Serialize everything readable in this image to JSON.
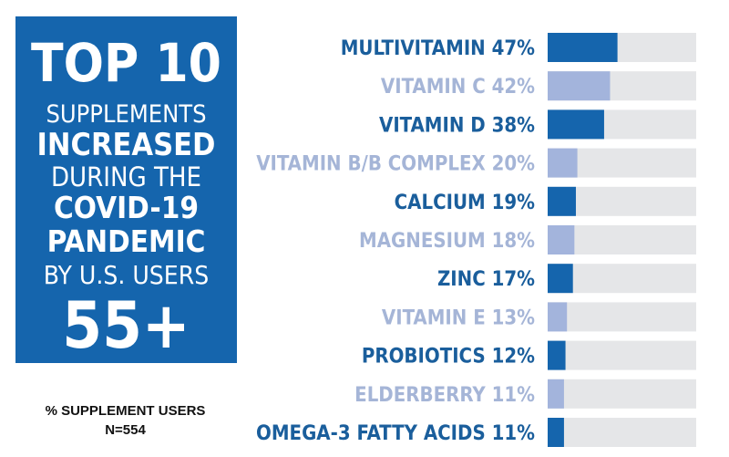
{
  "title": {
    "line_top": "TOP 10",
    "line1": "SUPPLEMENTS",
    "line2": "INCREASED",
    "line3": "DURING THE",
    "line4": "COVID-19",
    "line5": "PANDEMIC",
    "line6": "BY U.S. USERS",
    "age": "55+"
  },
  "footnote": {
    "line1": "% SUPPLEMENT USERS",
    "line2": "N=554"
  },
  "colors": {
    "title_box": "#1565ad",
    "dark_bar": "#1565ad",
    "light_bar": "#a3b4dc",
    "track": "#e5e6e8",
    "dark_label": "#1a5e9c",
    "light_label": "#a5b5d7"
  },
  "chart_data": {
    "type": "bar",
    "orientation": "horizontal",
    "categories": [
      "MULTIVITAMIN",
      "VITAMIN C",
      "VITAMIN D",
      "VITAMIN B/B COMPLEX",
      "CALCIUM",
      "MAGNESIUM",
      "ZINC",
      "VITAMIN E",
      "PROBIOTICS",
      "ELDERBERRY",
      "OMEGA-3 FATTY ACIDS"
    ],
    "values": [
      47,
      42,
      38,
      20,
      19,
      18,
      17,
      13,
      12,
      11,
      11
    ],
    "value_labels": [
      "47%",
      "42%",
      "38%",
      "20%",
      "19%",
      "18%",
      "17%",
      "13%",
      "12%",
      "11%",
      "11%"
    ],
    "xlim": [
      0,
      100
    ],
    "unit": "%"
  }
}
